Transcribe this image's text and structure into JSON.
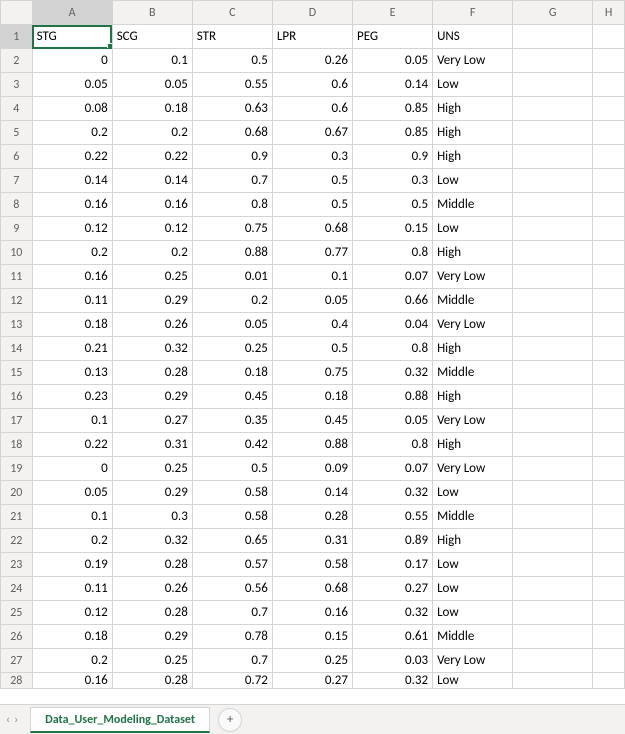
{
  "colors": {
    "selection_border": "#217346",
    "header_bg": "#f3f2f1",
    "header_fg": "#616161",
    "grid_line": "#d4d4d4",
    "tab_active_underline": "#217346",
    "cell_bg": "#ffffff"
  },
  "selection": {
    "cell": "A1",
    "row": 1,
    "col": "A"
  },
  "columns": [
    "A",
    "B",
    "C",
    "D",
    "E",
    "F",
    "G",
    "H"
  ],
  "row_numbers": [
    1,
    2,
    3,
    4,
    5,
    6,
    7,
    8,
    9,
    10,
    11,
    12,
    13,
    14,
    15,
    16,
    17,
    18,
    19,
    20,
    21,
    22,
    23,
    24,
    25,
    26,
    27,
    28
  ],
  "header_row": [
    "STG",
    "SCG",
    "STR",
    "LPR",
    "PEG",
    "UNS",
    "",
    ""
  ],
  "column_types": [
    "num",
    "num",
    "num",
    "num",
    "num",
    "txt",
    "txt",
    "txt"
  ],
  "rows": [
    [
      "0",
      "0.1",
      "0.5",
      "0.26",
      "0.05",
      "Very Low",
      "",
      ""
    ],
    [
      "0.05",
      "0.05",
      "0.55",
      "0.6",
      "0.14",
      "Low",
      "",
      ""
    ],
    [
      "0.08",
      "0.18",
      "0.63",
      "0.6",
      "0.85",
      "High",
      "",
      ""
    ],
    [
      "0.2",
      "0.2",
      "0.68",
      "0.67",
      "0.85",
      "High",
      "",
      ""
    ],
    [
      "0.22",
      "0.22",
      "0.9",
      "0.3",
      "0.9",
      "High",
      "",
      ""
    ],
    [
      "0.14",
      "0.14",
      "0.7",
      "0.5",
      "0.3",
      "Low",
      "",
      ""
    ],
    [
      "0.16",
      "0.16",
      "0.8",
      "0.5",
      "0.5",
      "Middle",
      "",
      ""
    ],
    [
      "0.12",
      "0.12",
      "0.75",
      "0.68",
      "0.15",
      "Low",
      "",
      ""
    ],
    [
      "0.2",
      "0.2",
      "0.88",
      "0.77",
      "0.8",
      "High",
      "",
      ""
    ],
    [
      "0.16",
      "0.25",
      "0.01",
      "0.1",
      "0.07",
      "Very Low",
      "",
      ""
    ],
    [
      "0.11",
      "0.29",
      "0.2",
      "0.05",
      "0.66",
      "Middle",
      "",
      ""
    ],
    [
      "0.18",
      "0.26",
      "0.05",
      "0.4",
      "0.04",
      "Very Low",
      "",
      ""
    ],
    [
      "0.21",
      "0.32",
      "0.25",
      "0.5",
      "0.8",
      "High",
      "",
      ""
    ],
    [
      "0.13",
      "0.28",
      "0.18",
      "0.75",
      "0.32",
      "Middle",
      "",
      ""
    ],
    [
      "0.23",
      "0.29",
      "0.45",
      "0.18",
      "0.88",
      "High",
      "",
      ""
    ],
    [
      "0.1",
      "0.27",
      "0.35",
      "0.45",
      "0.05",
      "Very Low",
      "",
      ""
    ],
    [
      "0.22",
      "0.31",
      "0.42",
      "0.88",
      "0.8",
      "High",
      "",
      ""
    ],
    [
      "0",
      "0.25",
      "0.5",
      "0.09",
      "0.07",
      "Very Low",
      "",
      ""
    ],
    [
      "0.05",
      "0.29",
      "0.58",
      "0.14",
      "0.32",
      "Low",
      "",
      ""
    ],
    [
      "0.1",
      "0.3",
      "0.58",
      "0.28",
      "0.55",
      "Middle",
      "",
      ""
    ],
    [
      "0.2",
      "0.32",
      "0.65",
      "0.31",
      "0.89",
      "High",
      "",
      ""
    ],
    [
      "0.19",
      "0.28",
      "0.57",
      "0.58",
      "0.17",
      "Low",
      "",
      ""
    ],
    [
      "0.11",
      "0.26",
      "0.56",
      "0.68",
      "0.27",
      "Low",
      "",
      ""
    ],
    [
      "0.12",
      "0.28",
      "0.7",
      "0.16",
      "0.32",
      "Low",
      "",
      ""
    ],
    [
      "0.18",
      "0.29",
      "0.78",
      "0.15",
      "0.61",
      "Middle",
      "",
      ""
    ],
    [
      "0.2",
      "0.25",
      "0.7",
      "0.25",
      "0.03",
      "Very Low",
      "",
      ""
    ],
    [
      "0.16",
      "0.28",
      "0.72",
      "0.27",
      "0.32",
      "Low",
      "",
      ""
    ]
  ],
  "sheet_tab": {
    "name": "Data_User_Modeling_Dataset"
  },
  "nav": {
    "prev": "‹",
    "next": "›"
  },
  "add_sheet_label": "+"
}
